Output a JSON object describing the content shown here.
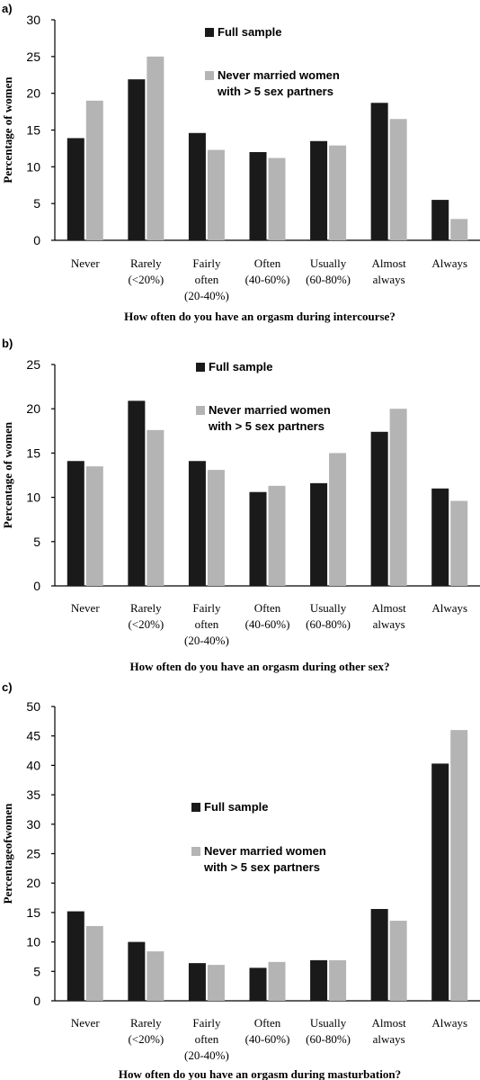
{
  "chart_data": [
    {
      "type": "bar",
      "panel_label": "a)",
      "categories": [
        [
          "Never"
        ],
        [
          "Rarely",
          "(<20%)"
        ],
        [
          "Fairly",
          "often",
          "(20-40%)"
        ],
        [
          "Often",
          "(40-60%)"
        ],
        [
          "Usually",
          "(60-80%)"
        ],
        [
          "Almost",
          "always"
        ],
        [
          "Always"
        ]
      ],
      "series": [
        {
          "name": "Full sample",
          "color": "#1a1a1a",
          "values": [
            13.9,
            21.9,
            14.6,
            12.0,
            13.5,
            18.7,
            5.5
          ]
        },
        {
          "name": "Never married women with > 5 sex partners",
          "name_lines": [
            "Never married women",
            "with > 5 sex partners"
          ],
          "color": "#b4b4b4",
          "values": [
            19.0,
            25.0,
            12.3,
            11.2,
            12.9,
            16.5,
            2.9
          ]
        }
      ],
      "ylabel": "Percentage of women",
      "xlabel": "How often do you have an orgasm during intercourse?",
      "ylim": [
        0,
        30
      ],
      "yticks": [
        "0",
        "5",
        "10",
        "15",
        "20",
        "25",
        "30"
      ],
      "grid": false,
      "legend": "top-center"
    },
    {
      "type": "bar",
      "panel_label": "b)",
      "categories": [
        [
          "Never"
        ],
        [
          "Rarely",
          "(<20%)"
        ],
        [
          "Fairly",
          "often",
          "(20-40%)"
        ],
        [
          "Often",
          "(40-60%)"
        ],
        [
          "Usually",
          "(60-80%)"
        ],
        [
          "Almost",
          "always"
        ],
        [
          "Always"
        ]
      ],
      "series": [
        {
          "name": "Full sample",
          "color": "#1a1a1a",
          "values": [
            14.1,
            20.9,
            14.1,
            10.6,
            11.6,
            17.4,
            11.0
          ]
        },
        {
          "name": "Never married women with > 5 sex partners",
          "name_lines": [
            "Never married women",
            "with > 5 sex partners"
          ],
          "color": "#b4b4b4",
          "values": [
            13.5,
            17.6,
            13.1,
            11.3,
            15.0,
            20.0,
            9.6
          ]
        }
      ],
      "ylabel": "Percentage of women",
      "xlabel": "How often do you have an orgasm during other sex?",
      "ylim": [
        0,
        25
      ],
      "yticks": [
        "0",
        "5",
        "10",
        "15",
        "20",
        "25"
      ],
      "grid": false,
      "legend": "top-center"
    },
    {
      "type": "bar",
      "panel_label": "c)",
      "categories": [
        [
          "Never"
        ],
        [
          "Rarely",
          "(<20%)"
        ],
        [
          "Fairly",
          "often",
          "(20-40%)"
        ],
        [
          "Often",
          "(40-60%)"
        ],
        [
          "Usually",
          "(60-80%)"
        ],
        [
          "Almost",
          "always"
        ],
        [
          "Always"
        ]
      ],
      "series": [
        {
          "name": "Full sample",
          "color": "#1a1a1a",
          "values": [
            15.2,
            10.0,
            6.4,
            5.6,
            6.9,
            15.6,
            40.3
          ]
        },
        {
          "name": "Never married women with > 5 sex partners",
          "name_lines": [
            "Never married women",
            "with > 5 sex partners"
          ],
          "color": "#b4b4b4",
          "values": [
            12.7,
            8.4,
            6.1,
            6.6,
            6.9,
            13.6,
            46.0
          ]
        }
      ],
      "ylabel": "Percentageofwomen",
      "xlabel": "How often do you have an orgasm during masturbation?",
      "ylim": [
        0,
        50
      ],
      "yticks": [
        "0",
        "5",
        "10",
        "15",
        "20",
        "25",
        "30",
        "35",
        "40",
        "45",
        "50"
      ],
      "grid": false,
      "legend": "center"
    }
  ]
}
